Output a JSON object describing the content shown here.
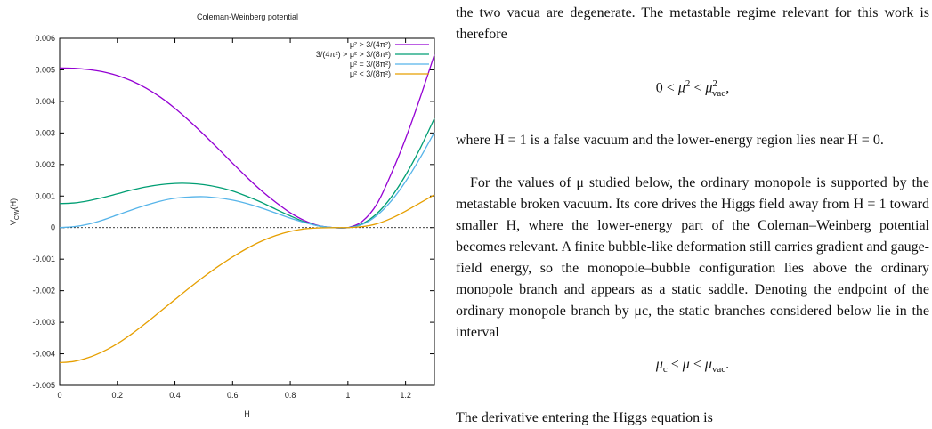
{
  "chart_data": {
    "type": "line",
    "title": "Coleman-Weinberg potential",
    "xlabel": "H",
    "ylabel": "V_CW(H)",
    "xlim": [
      0,
      1.3
    ],
    "ylim": [
      -0.005,
      0.006
    ],
    "xticks": [
      "0",
      "0.2",
      "0.4",
      "0.6",
      "0.8",
      "1",
      "1.2"
    ],
    "yticks": [
      "-0.005",
      "-0.004",
      "-0.003",
      "-0.002",
      "-0.001",
      "0",
      "0.001",
      "0.002",
      "0.003",
      "0.004",
      "0.005",
      "0.006"
    ],
    "legend_position": "top-right",
    "grid": false,
    "zero_line": "dashed",
    "x": [
      0,
      0.05,
      0.1,
      0.15,
      0.2,
      0.25,
      0.3,
      0.35,
      0.4,
      0.45,
      0.5,
      0.55,
      0.6,
      0.65,
      0.7,
      0.75,
      0.8,
      0.85,
      0.9,
      0.95,
      1.0,
      1.05,
      1.1,
      1.15,
      1.2,
      1.25,
      1.3
    ],
    "series": [
      {
        "name": "μ² > 3/(4π²)",
        "color": "#9400d3",
        "values": [
          0.00506,
          0.00505,
          0.00501,
          0.00494,
          0.00482,
          0.00465,
          0.00442,
          0.00413,
          0.00378,
          0.00338,
          0.00295,
          0.0025,
          0.00204,
          0.00159,
          0.00117,
          0.0008,
          0.00047,
          0.00022,
          6e-05,
          0.0,
          0.0,
          0.0002,
          0.00074,
          0.0017,
          0.00282,
          0.0041,
          0.00548
        ]
      },
      {
        "name": "3/(4π²) > μ² > 3/(8π²)",
        "color": "#009e73",
        "values": [
          0.00076,
          0.00078,
          0.00085,
          0.00095,
          0.00107,
          0.00119,
          0.00129,
          0.00136,
          0.0014,
          0.0014,
          0.00136,
          0.00128,
          0.00116,
          0.00099,
          0.0008,
          0.00058,
          0.00037,
          0.00018,
          5e-05,
          0.0,
          0.0,
          0.00012,
          0.00044,
          0.00096,
          0.00166,
          0.0025,
          0.00346
        ]
      },
      {
        "name": "μ² = 3/(8π²)",
        "color": "#56b4e9",
        "values": [
          0.0,
          3e-05,
          0.00011,
          0.00024,
          0.0004,
          0.00056,
          0.00071,
          0.00084,
          0.00093,
          0.00097,
          0.00098,
          0.00094,
          0.00087,
          0.00076,
          0.00062,
          0.00046,
          0.0003,
          0.00016,
          5e-05,
          0.0,
          0.0,
          0.0001,
          0.00038,
          0.00084,
          0.00146,
          0.0022,
          0.00302
        ]
      },
      {
        "name": "μ² < 3/(8π²)",
        "color": "#e69f00",
        "values": [
          -0.00428,
          -0.00424,
          -0.00412,
          -0.00393,
          -0.00368,
          -0.00337,
          -0.00302,
          -0.00265,
          -0.00228,
          -0.00191,
          -0.00156,
          -0.00123,
          -0.00093,
          -0.00066,
          -0.00043,
          -0.00025,
          -0.00012,
          -4e-05,
          -1e-05,
          0.0,
          0.0,
          3e-05,
          0.00012,
          0.00029,
          0.00052,
          0.00078,
          0.00104
        ]
      }
    ]
  },
  "text": {
    "p1": "the two vacua are degenerate. The metastable regime relevant for this work is therefore",
    "p2": "where H = 1 is a false vacuum and the lower-energy region lies near H = 0.",
    "p3": "For the values of μ studied below, the ordinary monopole is supported by the metastable broken vacuum. Its core drives the Higgs field away from H = 1 toward smaller H, where the lower-energy part of the Coleman–Weinberg potential becomes relevant. A finite bubble-like deformation still carries gradient and gauge-field energy, so the monopole–bubble configuration lies above the ordinary monopole branch and appears as a static saddle. Denoting the endpoint of the ordinary monopole branch by μc, the static branches considered below lie in the interval",
    "p4": "The derivative entering the Higgs equation is"
  }
}
